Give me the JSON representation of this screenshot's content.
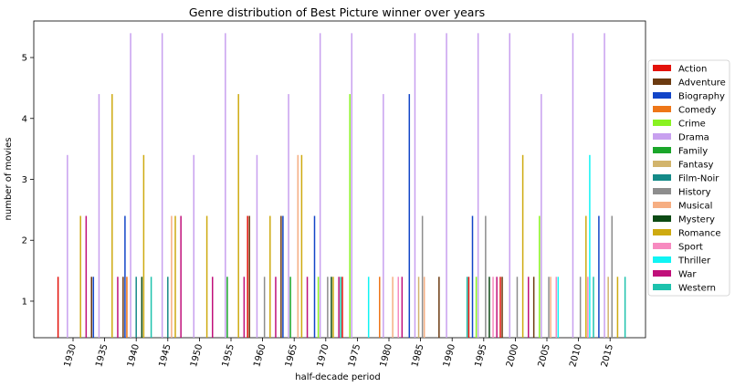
{
  "chart_data": {
    "type": "bar",
    "title": "Genre distribution of Best Picture winner over years",
    "xlabel": "half-decade period",
    "ylabel": "number of movies",
    "ylim": [
      0.4,
      5.6
    ],
    "yticks": [
      "1",
      "2",
      "3",
      "4",
      "5"
    ],
    "legend_position": "right",
    "grid": false,
    "categories": [
      "1930",
      "1935",
      "1940",
      "1945",
      "1950",
      "1955",
      "1960",
      "1965",
      "1970",
      "1975",
      "1980",
      "1985",
      "1990",
      "1995",
      "2000",
      "2005",
      "2010",
      "2015"
    ],
    "series": [
      {
        "name": "Action",
        "color": "#e3120b",
        "values": [
          1.4,
          0,
          0,
          0,
          0,
          0,
          2.4,
          0,
          0,
          1.4,
          0,
          0,
          0,
          1.4,
          1.4,
          0,
          0,
          0
        ]
      },
      {
        "name": "Adventure",
        "color": "#6b3a10",
        "values": [
          0,
          1.4,
          1.4,
          0,
          0,
          0,
          2.4,
          2.4,
          0,
          0,
          0,
          0,
          1.4,
          0,
          1.4,
          1.4,
          0,
          0
        ]
      },
      {
        "name": "Biography",
        "color": "#1245c8",
        "values": [
          0,
          1.4,
          2.4,
          0,
          0,
          0,
          0,
          2.4,
          2.4,
          0,
          0,
          4.4,
          0,
          2.4,
          0,
          0,
          0,
          2.4
        ]
      },
      {
        "name": "Comedy",
        "color": "#ee7618",
        "values": [
          0,
          0,
          1.4,
          0,
          0,
          0,
          0,
          0,
          0,
          0,
          1.4,
          0,
          0,
          0,
          0,
          0,
          0,
          0
        ]
      },
      {
        "name": "Crime",
        "color": "#89f222",
        "values": [
          0,
          0,
          0,
          0,
          0,
          0,
          0,
          0,
          1.4,
          4.4,
          0,
          0,
          0,
          1.4,
          0,
          2.4,
          0,
          0
        ]
      },
      {
        "name": "Drama",
        "color": "#c8a0ef",
        "values": [
          3.4,
          4.4,
          5.4,
          5.4,
          3.4,
          5.4,
          3.4,
          4.4,
          5.4,
          5.4,
          4.4,
          5.4,
          5.4,
          5.4,
          5.4,
          4.4,
          5.4,
          5.4
        ]
      },
      {
        "name": "Family",
        "color": "#1aa62a",
        "values": [
          0,
          0,
          0,
          0,
          0,
          1.4,
          0,
          1.4,
          0,
          0,
          0,
          0,
          0,
          0,
          0,
          0,
          0,
          0
        ]
      },
      {
        "name": "Fantasy",
        "color": "#d2b46c",
        "values": [
          0,
          0,
          0,
          0,
          0,
          0,
          0,
          0,
          0,
          0,
          0,
          1.4,
          0,
          0,
          0,
          0,
          0,
          1.4
        ]
      },
      {
        "name": "Film-Noir",
        "color": "#148a88",
        "values": [
          0,
          0,
          1.4,
          1.4,
          0,
          0,
          0,
          0,
          0,
          0,
          0,
          0,
          0,
          0,
          0,
          0,
          0,
          0
        ]
      },
      {
        "name": "History",
        "color": "#8d8d8d",
        "values": [
          0,
          0,
          0,
          0,
          0,
          0,
          1.4,
          0,
          1.4,
          0,
          0,
          2.4,
          0,
          2.4,
          1.4,
          1.4,
          1.4,
          2.4
        ]
      },
      {
        "name": "Musical",
        "color": "#f6ae82",
        "values": [
          0,
          0,
          0,
          2.4,
          0,
          0,
          0,
          3.4,
          0,
          0,
          1.4,
          1.4,
          0,
          0,
          0,
          1.4,
          0,
          0
        ]
      },
      {
        "name": "Mystery",
        "color": "#0c4a14",
        "values": [
          0,
          0,
          1.4,
          0,
          0,
          0,
          0,
          0,
          1.4,
          0,
          0,
          0,
          0,
          1.4,
          0,
          0,
          0,
          0
        ]
      },
      {
        "name": "Romance",
        "color": "#ceaa10",
        "values": [
          2.4,
          4.4,
          3.4,
          2.4,
          2.4,
          4.4,
          2.4,
          3.4,
          1.4,
          0,
          0,
          0,
          0,
          0,
          3.4,
          0,
          2.4,
          1.4
        ]
      },
      {
        "name": "Sport",
        "color": "#f78ac0",
        "values": [
          0,
          0,
          0,
          0,
          0,
          0,
          0,
          0,
          0,
          0,
          1.4,
          0,
          0,
          1.4,
          0,
          1.4,
          1.4,
          0
        ]
      },
      {
        "name": "Thriller",
        "color": "#10f4f4",
        "values": [
          0,
          0,
          0,
          0,
          0,
          0,
          0,
          0,
          0,
          1.4,
          0,
          0,
          0,
          0,
          0,
          1.4,
          3.4,
          0
        ]
      },
      {
        "name": "War",
        "color": "#c0107a",
        "values": [
          2.4,
          1.4,
          0,
          2.4,
          1.4,
          1.4,
          1.4,
          1.4,
          1.4,
          0,
          1.4,
          0,
          0,
          1.4,
          1.4,
          0,
          0,
          0
        ]
      },
      {
        "name": "Western",
        "color": "#1dc2ad",
        "values": [
          0,
          0,
          1.4,
          0,
          0,
          0,
          0,
          0,
          1.4,
          0,
          0,
          0,
          1.4,
          0,
          0,
          0,
          1.4,
          1.4
        ]
      }
    ]
  }
}
